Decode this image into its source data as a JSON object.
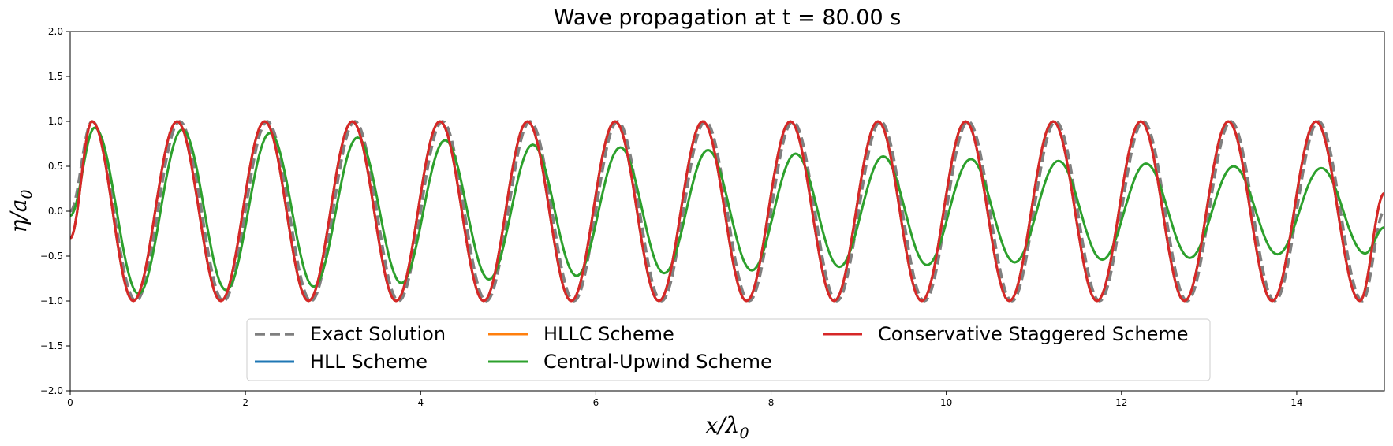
{
  "chart_data": {
    "type": "line",
    "title": "Wave propagation at t = 80.00 s",
    "xlabel": {
      "main": "x/λ",
      "sub": "0"
    },
    "ylabel": {
      "main": "η/a",
      "sub": "0"
    },
    "xlim": [
      0,
      15
    ],
    "ylim": [
      -2.0,
      2.0
    ],
    "xticks": [
      0,
      2,
      4,
      6,
      8,
      10,
      12,
      14
    ],
    "xtick_labels": [
      "0",
      "2",
      "4",
      "6",
      "8",
      "10",
      "12",
      "14"
    ],
    "yticks": [
      -2.0,
      -1.5,
      -1.0,
      -0.5,
      0.0,
      0.5,
      1.0,
      1.5,
      2.0
    ],
    "ytick_labels": [
      "−2.0",
      "−1.5",
      "−1.0",
      "−0.5",
      "0.0",
      "0.5",
      "1.0",
      "1.5",
      "2.0"
    ],
    "grid": false,
    "legend": {
      "placement": "lower-center",
      "columns": 3
    },
    "series": [
      {
        "name": "Exact Solution",
        "color": "#7f7f7f",
        "style": "dashed",
        "x": [
          0.0,
          0.25,
          0.75,
          1.25,
          1.75,
          2.25,
          2.75,
          3.25,
          3.75,
          4.25,
          4.75,
          5.25,
          5.75,
          6.25,
          6.75,
          7.25,
          7.75,
          8.25,
          8.75,
          9.25,
          9.75,
          10.25,
          10.75,
          11.25,
          11.75,
          12.25,
          12.75,
          13.25,
          13.75,
          14.25,
          14.75,
          15.0
        ],
        "y": [
          0.0,
          1.0,
          -1.0,
          1.0,
          -1.0,
          1.0,
          -1.0,
          1.0,
          -1.0,
          1.0,
          -1.0,
          1.0,
          -1.0,
          1.0,
          -1.0,
          1.0,
          -1.0,
          1.0,
          -1.0,
          1.0,
          -1.0,
          1.0,
          -1.0,
          1.0,
          -1.0,
          1.0,
          -1.0,
          1.0,
          -1.0,
          1.0,
          -1.0,
          0.0
        ]
      },
      {
        "name": "HLL Scheme",
        "color": "#1f77b4",
        "style": "solid",
        "x": [
          0.0,
          0.25,
          0.72,
          1.22,
          1.72,
          2.22,
          2.72,
          3.22,
          3.72,
          4.22,
          4.72,
          5.22,
          5.72,
          6.22,
          6.72,
          7.22,
          7.72,
          8.22,
          8.72,
          9.22,
          9.72,
          10.22,
          10.72,
          11.22,
          11.72,
          12.22,
          12.72,
          13.22,
          13.72,
          14.22,
          14.72,
          15.0
        ],
        "y": [
          -0.3,
          1.0,
          -1.0,
          1.0,
          -1.0,
          1.0,
          -1.0,
          1.0,
          -1.0,
          1.0,
          -1.0,
          1.0,
          -1.0,
          1.0,
          -1.0,
          1.0,
          -1.0,
          1.0,
          -1.0,
          1.0,
          -1.0,
          1.0,
          -1.0,
          1.0,
          -1.0,
          1.0,
          -1.0,
          1.0,
          -1.0,
          1.0,
          -1.0,
          0.2
        ]
      },
      {
        "name": "HLLC Scheme",
        "color": "#ff7f0e",
        "style": "solid",
        "x": [
          0.0,
          0.25,
          0.72,
          1.22,
          1.72,
          2.22,
          2.72,
          3.22,
          3.72,
          4.22,
          4.72,
          5.22,
          5.72,
          6.22,
          6.72,
          7.22,
          7.72,
          8.22,
          8.72,
          9.22,
          9.72,
          10.22,
          10.72,
          11.22,
          11.72,
          12.22,
          12.72,
          13.22,
          13.72,
          14.22,
          14.72,
          15.0
        ],
        "y": [
          -0.3,
          1.0,
          -1.0,
          1.0,
          -1.0,
          1.0,
          -1.0,
          1.0,
          -1.0,
          1.0,
          -1.0,
          1.0,
          -1.0,
          1.0,
          -1.0,
          1.0,
          -1.0,
          1.0,
          -1.0,
          1.0,
          -1.0,
          1.0,
          -1.0,
          1.0,
          -1.0,
          1.0,
          -1.0,
          1.0,
          -1.0,
          1.0,
          -1.0,
          0.2
        ]
      },
      {
        "name": "Central-Upwind Scheme",
        "color": "#2ca02c",
        "style": "solid",
        "x": [
          0.0,
          0.28,
          0.78,
          1.28,
          1.78,
          2.28,
          2.78,
          3.28,
          3.78,
          4.28,
          4.78,
          5.28,
          5.78,
          6.28,
          6.78,
          7.28,
          7.78,
          8.28,
          8.78,
          9.28,
          9.78,
          10.28,
          10.78,
          11.28,
          11.78,
          12.28,
          12.78,
          13.28,
          13.78,
          14.28,
          14.78,
          15.0
        ],
        "y": [
          -0.05,
          0.93,
          -0.92,
          0.91,
          -0.88,
          0.87,
          -0.84,
          0.82,
          -0.8,
          0.79,
          -0.76,
          0.74,
          -0.72,
          0.71,
          -0.69,
          0.68,
          -0.66,
          0.64,
          -0.62,
          0.61,
          -0.6,
          0.58,
          -0.57,
          0.56,
          -0.54,
          0.53,
          -0.52,
          0.5,
          -0.48,
          0.48,
          -0.47,
          -0.18
        ]
      },
      {
        "name": "Conservative Staggered Scheme",
        "color": "#d62728",
        "style": "solid",
        "x": [
          0.0,
          0.25,
          0.72,
          1.22,
          1.72,
          2.22,
          2.72,
          3.22,
          3.72,
          4.22,
          4.72,
          5.22,
          5.72,
          6.22,
          6.72,
          7.22,
          7.72,
          8.22,
          8.72,
          9.22,
          9.72,
          10.22,
          10.72,
          11.22,
          11.72,
          12.22,
          12.72,
          13.22,
          13.72,
          14.22,
          14.72,
          15.0
        ],
        "y": [
          -0.3,
          1.0,
          -1.0,
          1.0,
          -1.0,
          1.0,
          -1.0,
          1.0,
          -1.0,
          1.0,
          -1.0,
          1.0,
          -1.0,
          1.0,
          -1.0,
          1.0,
          -1.0,
          1.0,
          -1.0,
          1.0,
          -1.0,
          1.0,
          -1.0,
          1.0,
          -1.0,
          1.0,
          -1.0,
          1.0,
          -1.0,
          1.0,
          -1.0,
          0.2
        ]
      }
    ]
  }
}
